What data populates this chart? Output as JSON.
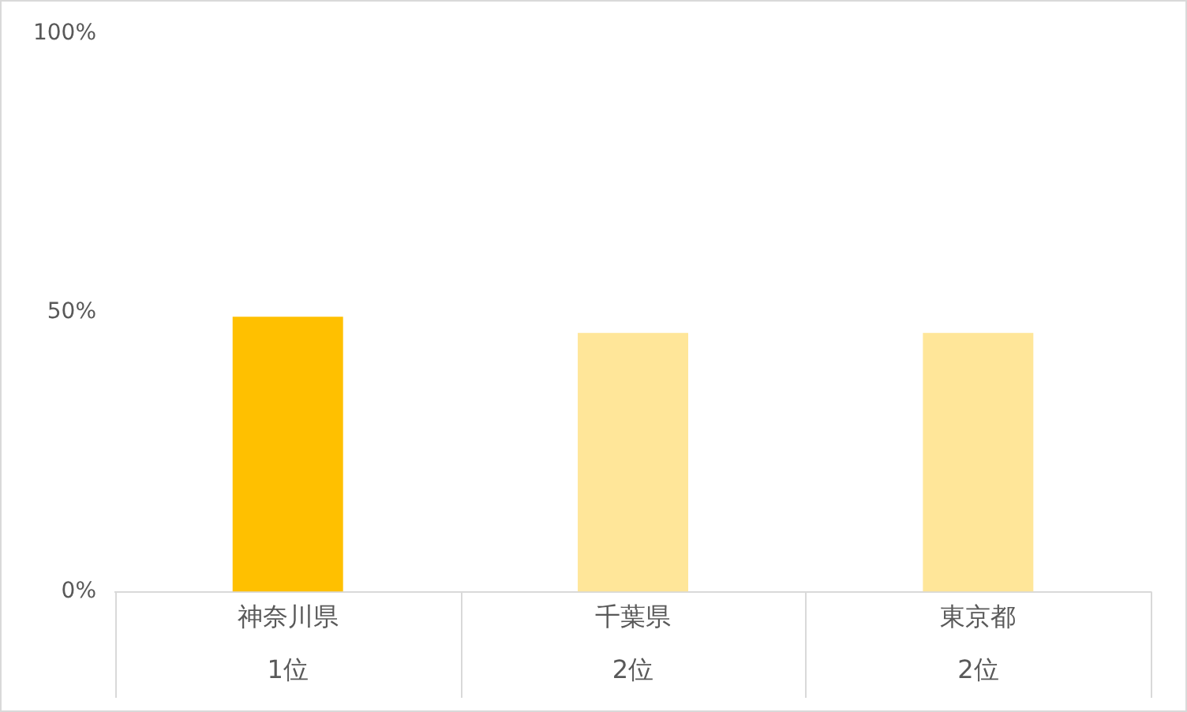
{
  "chart_data": {
    "type": "bar",
    "categories": [
      "神奈川県\n1位",
      "千葉県\n2位",
      "東京都\n2位"
    ],
    "values": [
      49.3,
      46.4,
      46.4
    ],
    "colors": [
      "#ffc000",
      "#ffe699",
      "#ffe699"
    ],
    "ylim": [
      0,
      100
    ],
    "yticks": [
      {
        "value": 0,
        "label": "0%"
      },
      {
        "value": 50,
        "label": "50%"
      },
      {
        "value": 100,
        "label": "100%"
      }
    ],
    "grid": false,
    "legend": false
  }
}
